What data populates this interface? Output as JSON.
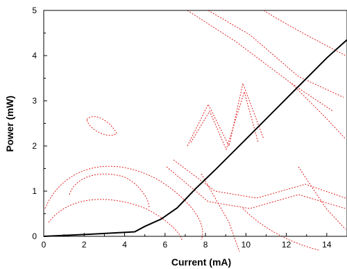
{
  "chart_data": {
    "type": "line",
    "title": "",
    "xlabel": "Current (mA)",
    "ylabel": "Power (mW)",
    "xlim": [
      0,
      15
    ],
    "ylim": [
      0,
      5
    ],
    "x_ticks": [
      "0",
      "2",
      "4",
      "6",
      "8",
      "10",
      "12",
      "14"
    ],
    "y_ticks": [
      "0",
      "1",
      "2",
      "3",
      "4",
      "5"
    ],
    "grid": false,
    "legend": "none",
    "series": [
      {
        "line_color": "#000000",
        "x": [
          0,
          2,
          4.5,
          5,
          5.8,
          6.6,
          7.5,
          8.5,
          10,
          12,
          14,
          15
        ],
        "y": [
          0,
          0.04,
          0.1,
          0.22,
          0.38,
          0.63,
          1.05,
          1.48,
          2.15,
          3.05,
          3.95,
          4.35
        ]
      }
    ]
  },
  "background_watermark": {
    "color": "#e02020"
  }
}
